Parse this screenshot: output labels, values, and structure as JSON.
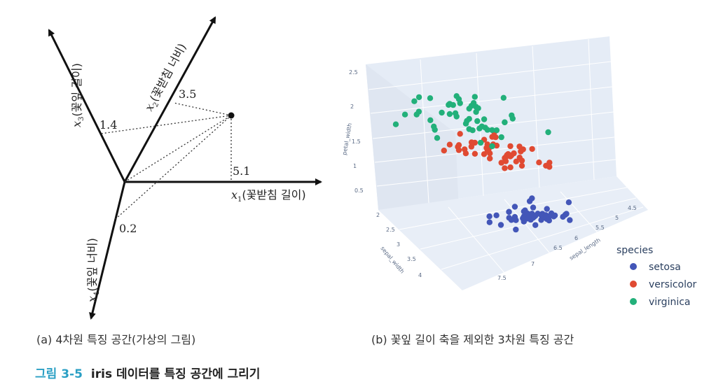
{
  "panel_a": {
    "axes": {
      "x1": {
        "sym": "x",
        "sub": "1",
        "label": "(꽃받침 길이)",
        "value": "5.1"
      },
      "x2": {
        "sym": "x",
        "sub": "2",
        "label": "(꽃받침 너비)",
        "value": "3.5"
      },
      "x3": {
        "sym": "x",
        "sub": "3",
        "label": "(꽃잎 길이)",
        "value": "1.4"
      },
      "x4": {
        "sym": "x",
        "sub": "4",
        "label": "(꽃잎 너비)",
        "value": "0.2"
      }
    },
    "caption": "(a) 4차원 특징 공간(가상의 그림)"
  },
  "panel_b": {
    "caption": "(b) 꽃잎 길이 축을 제외한 3차원 특징 공간",
    "legend_title": "species",
    "axis_titles": {
      "x": "sepal_length",
      "y": "sepal_width",
      "z": "petal_width"
    },
    "z_ticks": [
      "0.5",
      "1",
      "1.5",
      "2",
      "2.5"
    ],
    "y_ticks": [
      "2",
      "2.5",
      "3",
      "3.5",
      "4"
    ],
    "x_ticks": [
      "4.5",
      "5",
      "5.5",
      "6",
      "6.5",
      "7",
      "7.5"
    ]
  },
  "figure_caption": {
    "number": "그림 3-5",
    "text": "iris 데이터를 특징 공간에 그리기"
  },
  "chart_data": {
    "type": "scatter",
    "title": "",
    "xlabel": "sepal_length",
    "ylabel": "sepal_width",
    "zlabel": "petal_width",
    "legend_title": "species",
    "legend_position": "right",
    "colors": {
      "setosa": "#4356b8",
      "versicolor": "#e04a32",
      "virginica": "#22b07a"
    },
    "series": [
      {
        "name": "setosa",
        "points": [
          [
            5.1,
            3.5,
            0.2
          ],
          [
            4.9,
            3.0,
            0.2
          ],
          [
            4.7,
            3.2,
            0.2
          ],
          [
            4.6,
            3.1,
            0.2
          ],
          [
            5.0,
            3.6,
            0.2
          ],
          [
            5.4,
            3.9,
            0.4
          ],
          [
            4.6,
            3.4,
            0.3
          ],
          [
            5.0,
            3.4,
            0.2
          ],
          [
            4.4,
            2.9,
            0.2
          ],
          [
            4.9,
            3.1,
            0.1
          ],
          [
            5.4,
            3.7,
            0.2
          ],
          [
            4.8,
            3.4,
            0.2
          ],
          [
            4.8,
            3.0,
            0.1
          ],
          [
            4.3,
            3.0,
            0.1
          ],
          [
            5.8,
            4.0,
            0.2
          ],
          [
            5.7,
            4.4,
            0.4
          ],
          [
            5.4,
            3.9,
            0.4
          ],
          [
            5.1,
            3.5,
            0.3
          ],
          [
            5.7,
            3.8,
            0.3
          ],
          [
            5.1,
            3.8,
            0.3
          ],
          [
            5.4,
            3.4,
            0.2
          ],
          [
            5.1,
            3.7,
            0.4
          ],
          [
            4.6,
            3.6,
            0.2
          ],
          [
            5.1,
            3.3,
            0.5
          ],
          [
            4.8,
            3.4,
            0.2
          ],
          [
            5.0,
            3.0,
            0.2
          ],
          [
            5.0,
            3.4,
            0.4
          ],
          [
            5.2,
            3.5,
            0.2
          ],
          [
            5.2,
            3.4,
            0.2
          ],
          [
            4.7,
            3.2,
            0.2
          ],
          [
            4.8,
            3.1,
            0.2
          ],
          [
            5.4,
            3.4,
            0.4
          ],
          [
            5.2,
            4.1,
            0.1
          ],
          [
            5.5,
            4.2,
            0.2
          ],
          [
            4.9,
            3.1,
            0.2
          ],
          [
            5.0,
            3.2,
            0.2
          ],
          [
            5.5,
            3.5,
            0.2
          ],
          [
            4.9,
            3.6,
            0.1
          ],
          [
            4.4,
            3.0,
            0.2
          ],
          [
            5.1,
            3.4,
            0.2
          ],
          [
            5.0,
            3.5,
            0.3
          ],
          [
            4.5,
            2.3,
            0.3
          ],
          [
            4.4,
            3.2,
            0.2
          ],
          [
            5.0,
            3.5,
            0.6
          ],
          [
            5.1,
            3.8,
            0.4
          ],
          [
            4.8,
            3.0,
            0.3
          ],
          [
            5.1,
            3.8,
            0.2
          ],
          [
            4.6,
            3.2,
            0.2
          ],
          [
            5.3,
            3.7,
            0.2
          ],
          [
            5.0,
            3.3,
            0.2
          ]
        ]
      },
      {
        "name": "versicolor",
        "points": [
          [
            7.0,
            3.2,
            1.4
          ],
          [
            6.4,
            3.2,
            1.5
          ],
          [
            6.9,
            3.1,
            1.5
          ],
          [
            5.5,
            2.3,
            1.3
          ],
          [
            6.5,
            2.8,
            1.5
          ],
          [
            5.7,
            2.8,
            1.3
          ],
          [
            6.3,
            3.3,
            1.6
          ],
          [
            4.9,
            2.4,
            1.0
          ],
          [
            6.6,
            2.9,
            1.3
          ],
          [
            5.2,
            2.7,
            1.4
          ],
          [
            5.0,
            2.0,
            1.0
          ],
          [
            5.9,
            3.0,
            1.5
          ],
          [
            6.0,
            2.2,
            1.0
          ],
          [
            6.1,
            2.9,
            1.4
          ],
          [
            5.6,
            2.9,
            1.3
          ],
          [
            6.7,
            3.1,
            1.4
          ],
          [
            5.6,
            3.0,
            1.5
          ],
          [
            5.8,
            2.7,
            1.0
          ],
          [
            6.2,
            2.2,
            1.5
          ],
          [
            5.6,
            2.5,
            1.1
          ],
          [
            5.9,
            3.2,
            1.8
          ],
          [
            6.1,
            2.8,
            1.3
          ],
          [
            6.3,
            2.5,
            1.5
          ],
          [
            6.1,
            2.8,
            1.2
          ],
          [
            6.4,
            2.9,
            1.3
          ],
          [
            6.6,
            3.0,
            1.4
          ],
          [
            6.8,
            2.8,
            1.4
          ],
          [
            6.7,
            3.0,
            1.7
          ],
          [
            6.0,
            2.9,
            1.5
          ],
          [
            5.7,
            2.6,
            1.0
          ],
          [
            5.5,
            2.4,
            1.1
          ],
          [
            5.5,
            2.4,
            1.0
          ],
          [
            5.8,
            2.7,
            1.2
          ],
          [
            6.0,
            2.7,
            1.6
          ],
          [
            5.4,
            3.0,
            1.5
          ],
          [
            6.0,
            3.4,
            1.6
          ],
          [
            6.7,
            3.1,
            1.5
          ],
          [
            6.3,
            2.3,
            1.3
          ],
          [
            5.6,
            3.0,
            1.3
          ],
          [
            5.5,
            2.5,
            1.3
          ],
          [
            5.5,
            2.6,
            1.2
          ],
          [
            6.1,
            3.0,
            1.4
          ],
          [
            5.8,
            2.6,
            1.2
          ],
          [
            5.0,
            2.3,
            1.0
          ],
          [
            5.6,
            2.7,
            1.3
          ],
          [
            5.7,
            3.0,
            1.2
          ],
          [
            5.7,
            2.9,
            1.3
          ],
          [
            6.2,
            2.9,
            1.3
          ],
          [
            5.1,
            2.5,
            1.1
          ],
          [
            5.7,
            2.8,
            1.3
          ]
        ]
      },
      {
        "name": "virginica",
        "points": [
          [
            6.3,
            3.3,
            2.5
          ],
          [
            5.8,
            2.7,
            1.9
          ],
          [
            7.1,
            3.0,
            2.1
          ],
          [
            6.3,
            2.9,
            1.8
          ],
          [
            6.5,
            3.0,
            2.2
          ],
          [
            7.6,
            3.0,
            2.1
          ],
          [
            4.9,
            2.5,
            1.7
          ],
          [
            7.3,
            2.9,
            1.8
          ],
          [
            6.7,
            2.5,
            1.8
          ],
          [
            7.2,
            3.6,
            2.5
          ],
          [
            6.5,
            3.2,
            2.0
          ],
          [
            6.4,
            2.7,
            1.9
          ],
          [
            6.8,
            3.0,
            2.1
          ],
          [
            5.7,
            2.5,
            2.0
          ],
          [
            5.8,
            2.8,
            2.4
          ],
          [
            6.4,
            3.2,
            2.3
          ],
          [
            6.5,
            3.0,
            1.8
          ],
          [
            7.7,
            3.8,
            2.2
          ],
          [
            7.7,
            2.6,
            2.3
          ],
          [
            6.0,
            2.2,
            1.5
          ],
          [
            6.9,
            3.2,
            2.3
          ],
          [
            5.6,
            2.8,
            2.0
          ],
          [
            7.7,
            2.8,
            2.0
          ],
          [
            6.3,
            2.7,
            1.8
          ],
          [
            6.7,
            3.3,
            2.1
          ],
          [
            7.2,
            3.2,
            1.8
          ],
          [
            6.2,
            2.8,
            1.8
          ],
          [
            6.1,
            3.0,
            1.8
          ],
          [
            6.4,
            2.8,
            2.1
          ],
          [
            7.2,
            3.0,
            1.6
          ],
          [
            7.4,
            2.8,
            1.9
          ],
          [
            7.9,
            3.8,
            2.0
          ],
          [
            6.4,
            2.8,
            2.2
          ],
          [
            6.3,
            2.8,
            1.5
          ],
          [
            6.1,
            2.6,
            1.4
          ],
          [
            7.7,
            3.0,
            2.3
          ],
          [
            6.3,
            3.4,
            2.4
          ],
          [
            6.4,
            3.1,
            1.8
          ],
          [
            6.0,
            3.0,
            1.8
          ],
          [
            6.9,
            3.1,
            2.1
          ],
          [
            6.7,
            3.1,
            2.4
          ],
          [
            6.9,
            3.1,
            2.3
          ],
          [
            5.8,
            2.7,
            1.9
          ],
          [
            6.8,
            3.2,
            2.3
          ],
          [
            6.7,
            3.3,
            2.5
          ],
          [
            6.7,
            3.0,
            2.3
          ],
          [
            6.3,
            2.5,
            1.9
          ],
          [
            6.5,
            3.0,
            2.0
          ],
          [
            6.2,
            3.4,
            2.3
          ],
          [
            5.9,
            3.0,
            1.8
          ]
        ]
      }
    ]
  }
}
